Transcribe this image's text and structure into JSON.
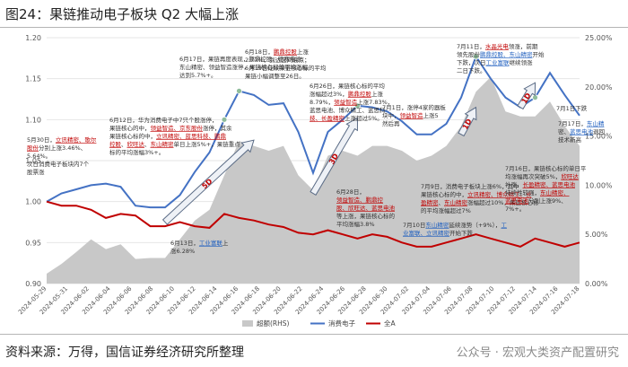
{
  "header": {
    "title": "图24：果链推动电子板块 Q2 大幅上涨"
  },
  "footer": {
    "source": "资料来源：万得，国信证券经济研究所整理",
    "watermark": "公众号 · 宏观大类资产配置研究"
  },
  "colors": {
    "area": "#c8c8c8",
    "line_consumer": "#4472c4",
    "line_all": "#c00000",
    "marker": "#8fbc9b",
    "note_red": "#c00000",
    "note_blue": "#1f5fbf",
    "arrow_text": "#c00000"
  },
  "chart_data": {
    "type": "line",
    "title": "",
    "x": [
      "2024-05-29",
      "2024-05-30",
      "2024-05-31",
      "2024-06-03",
      "2024-06-04",
      "2024-06-05",
      "2024-06-06",
      "2024-06-07",
      "2024-06-11",
      "2024-06-12",
      "2024-06-13",
      "2024-06-14",
      "2024-06-17",
      "2024-06-18",
      "2024-06-19",
      "2024-06-20",
      "2024-06-21",
      "2024-06-24",
      "2024-06-25",
      "2024-06-26",
      "2024-06-27",
      "2024-06-28",
      "2024-07-01",
      "2024-07-02",
      "2024-07-03",
      "2024-07-04",
      "2024-07-05",
      "2024-07-08",
      "2024-07-09",
      "2024-07-10",
      "2024-07-11",
      "2024-07-12",
      "2024-07-15",
      "2024-07-16",
      "2024-07-17",
      "2024-07-18",
      "2024-07-19"
    ],
    "tick_labels": [
      "2024-05-29",
      "2024-05-31",
      "2024-06-02",
      "2024-06-04",
      "2024-06-06",
      "2024-06-08",
      "2024-06-10",
      "2024-06-12",
      "2024-06-14",
      "2024-06-16",
      "2024-06-18",
      "2024-06-20",
      "2024-06-22",
      "2024-06-24",
      "2024-06-26",
      "2024-06-28",
      "2024-06-30",
      "2024-07-02",
      "2024-07-04",
      "2024-07-06",
      "2024-07-08",
      "2024-07-10",
      "2024-07-12",
      "2024-07-14",
      "2024-07-16",
      "2024-07-18"
    ],
    "left_axis": {
      "ylim": [
        0.9,
        1.2
      ],
      "ticks": [
        "0.90",
        "0.95",
        "1.00",
        "1.05",
        "1.10",
        "1.15",
        "1.20"
      ]
    },
    "right_axis": {
      "ylim": [
        0,
        25
      ],
      "ticks": [
        "0.00%",
        "5.00%",
        "10.00%",
        "15.00%",
        "20.00%",
        "25.00%"
      ]
    },
    "series": [
      {
        "name": "超额(RHS)",
        "type": "area",
        "axis": "right",
        "values": [
          1.0,
          2.0,
          3.2,
          4.5,
          3.5,
          4.0,
          2.5,
          2.6,
          2.6,
          4.5,
          6.4,
          7.5,
          11.0,
          14.5,
          14.0,
          13.5,
          14.0,
          11.0,
          9.5,
          13.0,
          13.5,
          13.0,
          14.0,
          14.0,
          13.5,
          12.5,
          13.0,
          14.0,
          16.0,
          19.5,
          21.0,
          17.5,
          17.0,
          17.0,
          18.5,
          16.0,
          14.0
        ]
      },
      {
        "name": "消费电子",
        "type": "line",
        "axis": "left",
        "values": [
          1.0,
          1.01,
          1.015,
          1.02,
          1.022,
          1.018,
          0.995,
          0.993,
          0.993,
          1.008,
          1.036,
          1.06,
          1.1,
          1.135,
          1.13,
          1.118,
          1.12,
          1.085,
          1.035,
          1.085,
          1.1,
          1.117,
          1.115,
          1.11,
          1.098,
          1.082,
          1.082,
          1.095,
          1.127,
          1.177,
          1.15,
          1.127,
          1.115,
          1.127,
          1.157,
          1.13,
          1.105
        ]
      },
      {
        "name": "全A",
        "type": "line",
        "axis": "left",
        "values": [
          1.0,
          0.995,
          0.995,
          0.99,
          0.98,
          0.985,
          0.983,
          0.97,
          0.97,
          0.975,
          0.97,
          0.968,
          0.985,
          0.98,
          0.977,
          0.972,
          0.969,
          0.962,
          0.96,
          0.965,
          0.96,
          0.955,
          0.96,
          0.957,
          0.95,
          0.945,
          0.945,
          0.95,
          0.955,
          0.96,
          0.955,
          0.95,
          0.945,
          0.955,
          0.95,
          0.945,
          0.95
        ]
      }
    ],
    "marker_points": [
      12,
      13,
      21,
      29,
      33
    ],
    "legend": {
      "position": "bottom",
      "labels": [
        "超额(RHS)",
        "消费电子",
        "全A"
      ]
    },
    "arrows": [
      {
        "label": "5D",
        "from": [
          8,
          0.975
        ],
        "to": [
          14,
          1.075
        ]
      },
      {
        "label": "3D",
        "from": [
          18,
          1.01
        ],
        "to": [
          21,
          1.102
        ]
      },
      {
        "label": "1D",
        "from": [
          28,
          1.082
        ],
        "to": [
          29,
          1.115
        ]
      },
      {
        "label": "1D",
        "from": [
          32,
          1.115
        ],
        "to": [
          33,
          1.145
        ]
      }
    ],
    "annotations": [
      {
        "id": "a1",
        "lines": [
          [
            [
              "5月30日，",
              ""
            ],
            [
              "立讯精密、歌尔",
              "red"
            ]
          ],
          [
            [
              "股份",
              "red"
            ],
            [
              "分别上涨3.46%、",
              ""
            ]
          ],
          [
            [
              "5.64%。",
              ""
            ]
          ],
          [
            [
              "次日消费电子板块内7个",
              ""
            ]
          ],
          [
            [
              "股票涨",
              ""
            ]
          ]
        ]
      },
      {
        "id": "a2",
        "lines": [
          [
            [
              "6月12日，华为消费电子中7只个股涨停，",
              ""
            ]
          ],
          [
            [
              "果链核心的中，",
              ""
            ],
            [
              "领益智造、京东股份",
              "red"
            ],
            [
              "涨停，其余",
              ""
            ]
          ],
          [
            [
              "果链核心标的中，",
              ""
            ],
            [
              "立讯精密、蓝思科技、鹏鼎",
              "red"
            ]
          ],
          [
            [
              "控股",
              "red"
            ],
            [
              "、",
              ""
            ],
            [
              "欣旺达",
              "red"
            ],
            [
              "、",
              ""
            ],
            [
              "东山精密",
              "red"
            ],
            [
              "单日上涨5%+，果链重点",
              ""
            ]
          ],
          [
            [
              "标的平均涨幅3%+。",
              ""
            ]
          ]
        ]
      },
      {
        "id": "a3",
        "lines": [
          [
            [
              "6月17日，果链再度表现，鹏鼎控股、德赛电池、",
              ""
            ]
          ],
          [
            [
              "东山精密、领益智造涨停，果链核心标的平均涨幅",
              ""
            ]
          ],
          [
            [
              "达到5.7%+。",
              ""
            ]
          ]
        ]
      },
      {
        "id": "a4",
        "lines": [
          [
            [
              "6月18日，",
              ""
            ],
            [
              "鹏鼎控股",
              "red"
            ],
            [
              "上涨",
              ""
            ]
          ],
          [
            [
              "2.77%，到达区间高点；",
              ""
            ]
          ],
          [
            [
              "6月19日陆续果链核心标的平均",
              ""
            ]
          ],
          [
            [
              "果链小幅调整至26日。",
              ""
            ]
          ]
        ]
      },
      {
        "id": "a5",
        "lines": [
          [
            [
              "6月13日，",
              ""
            ],
            [
              "工业富联",
              "blue"
            ],
            [
              "上",
              ""
            ]
          ],
          [
            [
              "涨6.28%",
              ""
            ]
          ]
        ]
      },
      {
        "id": "a6",
        "lines": [
          [
            [
              "6月26日，果链核心标的平均",
              ""
            ]
          ],
          [
            [
              "涨幅超过3%，",
              ""
            ],
            [
              "鹏鼎控股",
              "red"
            ],
            [
              "上涨",
              ""
            ]
          ],
          [
            [
              "8.79%，",
              ""
            ],
            [
              "领益智造",
              "red"
            ],
            [
              "上涨7.83%，",
              ""
            ]
          ],
          [
            [
              "蓝思电池、博众精工、蓝思科",
              ""
            ],
            [
              "",
              "red"
            ]
          ],
          [
            [
              "技、长盈精密",
              "red"
            ],
            [
              "上涨超过5%。",
              ""
            ]
          ]
        ]
      },
      {
        "id": "a7",
        "lines": [
          [
            [
              "7月1日，涨停4家的器板",
              ""
            ]
          ],
          [
            [
              "块中，",
              ""
            ],
            [
              "领益智造",
              "red"
            ],
            [
              "上涨5",
              ""
            ]
          ],
          [
            [
              "然后再",
              ""
            ]
          ]
        ]
      },
      {
        "id": "a8",
        "lines": [
          [
            [
              "6月28日，",
              ""
            ]
          ],
          [
            [
              "领益智造、鹏鼎控",
              "red"
            ]
          ],
          [
            [
              "股、欣旺达、蓝思电池",
              "red"
            ]
          ],
          [
            [
              "等上涨，果链核心标的",
              ""
            ]
          ],
          [
            [
              "平均涨幅3.8%",
              ""
            ]
          ]
        ]
      },
      {
        "id": "a9",
        "lines": [
          [
            [
              "7月11日，",
              ""
            ],
            [
              "水晶光电",
              "red"
            ],
            [
              "领涨，前期",
              ""
            ]
          ],
          [
            [
              "领先股份",
              ""
            ],
            [
              "鹏鼎控股、东山精密",
              "blue"
            ],
            [
              "开始",
              ""
            ]
          ],
          [
            [
              "下跌，次日",
              ""
            ],
            [
              "工业富联",
              "blue"
            ],
            [
              "继续领涨",
              ""
            ]
          ],
          [
            [
              "二日下跌。",
              ""
            ]
          ]
        ]
      },
      {
        "id": "a10",
        "lines": [
          [
            [
              "7月17日，",
              ""
            ],
            [
              "东山精",
              "blue"
            ]
          ],
          [
            [
              "密、",
              ""
            ],
            [
              "蓝思电池",
              "blue"
            ],
            [
              "退回",
              ""
            ]
          ],
          [
            [
              "技术新高",
              ""
            ]
          ]
        ]
      },
      {
        "id": "a11",
        "lines": [
          [
            [
              "7月9日，消费电子板块上涨6%，其中",
              ""
            ]
          ],
          [
            [
              "果链核心标的中，",
              ""
            ],
            [
              "立讯精密、博众精工、长",
              "red"
            ]
          ],
          [
            [
              "盈精密",
              "red"
            ],
            [
              "、",
              ""
            ],
            [
              "东山精密",
              "red"
            ],
            [
              "涨幅超过10%，果链核心标",
              ""
            ]
          ],
          [
            [
              "的平均涨幅超过7%",
              ""
            ]
          ]
        ]
      },
      {
        "id": "a12",
        "lines": [
          [
            [
              "7月10日",
              ""
            ],
            [
              "东山精密",
              "blue"
            ],
            [
              "延续涨势（+9%），",
              ""
            ],
            [
              "工",
              "blue"
            ]
          ],
          [
            [
              "业富联、立讯精密",
              "blue"
            ],
            [
              "开始下跌",
              ""
            ]
          ]
        ]
      },
      {
        "id": "a13",
        "lines": [
          [
            [
              "7月16日，果链核心标的单日平",
              ""
            ]
          ],
          [
            [
              "均涨幅再次突破5%，",
              ""
            ],
            [
              "欣旺达",
              "red"
            ]
          ],
          [
            [
              "补涨，",
              ""
            ],
            [
              "长盈精密、蓝思电池",
              "red"
            ]
          ],
          [
            [
              "持续性较强，",
              ""
            ],
            [
              "东山精密、",
              "red"
            ]
          ],
          [
            [
              "蓝思电池",
              "red"
            ],
            [
              "分别上涨9%、",
              ""
            ]
          ],
          [
            [
              "7%+。",
              ""
            ]
          ]
        ]
      },
      {
        "id": "a14",
        "lines": [
          [
            [
              "7月1日下跌",
              ""
            ]
          ]
        ]
      }
    ]
  }
}
